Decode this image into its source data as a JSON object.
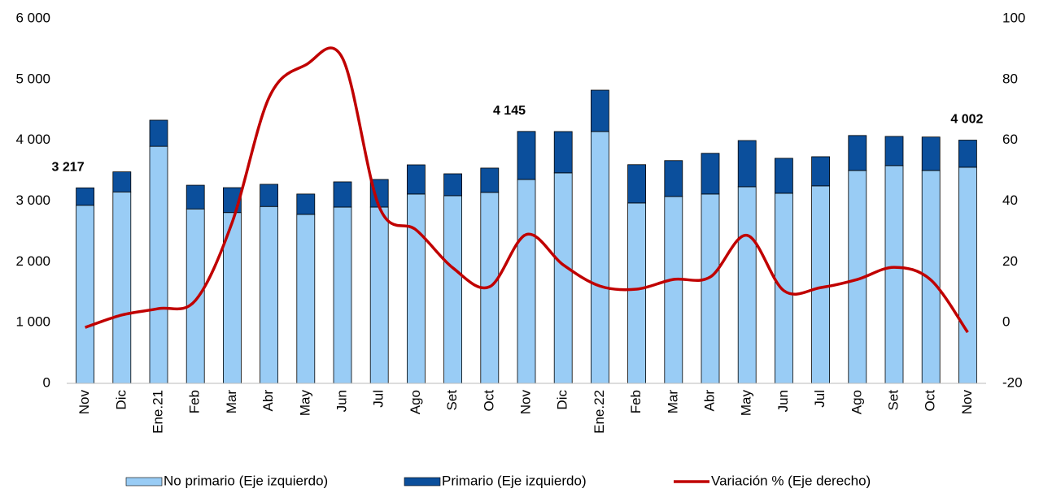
{
  "chart_data": {
    "type": "stacked-bar-line",
    "categories": [
      "Nov",
      "Dic",
      "Ene.21",
      "Feb",
      "Mar",
      "Abr",
      "May",
      "Jun",
      "Jul",
      "Ago",
      "Set",
      "Oct",
      "Nov",
      "Dic",
      "Ene.22",
      "Feb",
      "Mar",
      "Abr",
      "May",
      "Jun",
      "Jul",
      "Ago",
      "Set",
      "Oct",
      "Nov"
    ],
    "series": [
      {
        "name": "No primario (Eje izquierdo)",
        "color": "#99ccf5",
        "type": "bar",
        "values": [
          2930,
          3150,
          3900,
          2870,
          2810,
          2910,
          2780,
          2900,
          2900,
          3115,
          3088,
          3142,
          3355,
          3463,
          4144,
          2968,
          3075,
          3115,
          3235,
          3128,
          3249,
          3503,
          3583,
          3503,
          3556
        ]
      },
      {
        "name": "Primario (Eje izquierdo)",
        "color": "#0b4f9c",
        "type": "bar",
        "values": [
          287,
          330,
          430,
          390,
          410,
          365,
          335,
          415,
          455,
          480,
          360,
          400,
          790,
          680,
          680,
          630,
          590,
          670,
          760,
          575,
          480,
          575,
          480,
          550,
          446
        ]
      },
      {
        "name": "Variación % (Eje derecho)",
        "color": "#c00000",
        "type": "line",
        "axis": "y2",
        "values": [
          -1.6,
          2.5,
          4.6,
          7.3,
          33,
          74,
          84.8,
          87,
          38,
          30.5,
          18,
          11.8,
          29,
          19,
          12,
          11,
          14.2,
          15,
          28.7,
          10.5,
          11.5,
          14.2,
          18.2,
          14,
          -3.2
        ]
      }
    ],
    "annotations": [
      {
        "index": 0,
        "value": 3217,
        "label": "3 217"
      },
      {
        "index": 12,
        "value": 4145,
        "label": "4 145"
      },
      {
        "index": 24,
        "value": 4002,
        "label": "4 002"
      }
    ],
    "ylim": [
      0,
      6000
    ],
    "yticks": [
      {
        "value": 0,
        "label": "0"
      },
      {
        "value": 1000,
        "label": "1 000"
      },
      {
        "value": 2000,
        "label": "2 000"
      },
      {
        "value": 3000,
        "label": "3 000"
      },
      {
        "value": 4000,
        "label": "4 000"
      },
      {
        "value": 5000,
        "label": "5 000"
      },
      {
        "value": 6000,
        "label": "6 000"
      }
    ],
    "y2lim": [
      -20,
      100
    ],
    "y2ticks": [
      -20,
      0,
      20,
      40,
      60,
      80,
      100
    ],
    "legend": "bottom"
  }
}
